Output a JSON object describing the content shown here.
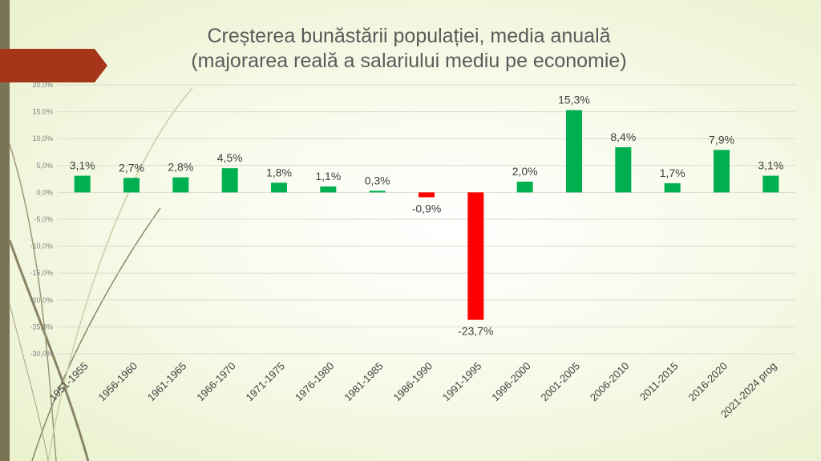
{
  "slide": {
    "title_line1": "Creșterea bunăstării populației, media anuală",
    "title_line2": "(majorarea reală a salariului mediu pe economie)"
  },
  "colors": {
    "positive": "#00b050",
    "negative": "#ff0000",
    "accent": "#a5361a",
    "strip": "#7a7455"
  },
  "chart_data": {
    "type": "bar",
    "categories": [
      "1951-1955",
      "1956-1960",
      "1961-1965",
      "1966-1970",
      "1971-1975",
      "1976-1980",
      "1981-1985",
      "1986-1990",
      "1991-1995",
      "1996-2000",
      "2001-2005",
      "2006-2010",
      "2011-2015",
      "2016-2020",
      "2021-2024 prog"
    ],
    "values": [
      3.1,
      2.7,
      2.8,
      4.5,
      1.8,
      1.1,
      0.3,
      -0.9,
      -23.7,
      2.0,
      15.3,
      8.4,
      1.7,
      7.9,
      3.1
    ],
    "data_labels": [
      "3,1%",
      "2,7%",
      "2,8%",
      "4,5%",
      "1,8%",
      "1,1%",
      "0,3%",
      "-0,9%",
      "-23,7%",
      "2,0%",
      "15,3%",
      "8,4%",
      "1,7%",
      "7,9%",
      "3,1%"
    ],
    "y_ticks": [
      20,
      15,
      10,
      5,
      0,
      -5,
      -10,
      -15,
      -20,
      -25,
      -30
    ],
    "y_tick_labels": [
      "20,0%",
      "15,0%",
      "10,0%",
      "5,0%",
      "0,0%",
      "-5,0%",
      "-10,0%",
      "-15,0%",
      "-20,0%",
      "-25,0%",
      "-30,0%"
    ],
    "ylim": [
      -30,
      20
    ],
    "grid": true,
    "legend": "none"
  }
}
